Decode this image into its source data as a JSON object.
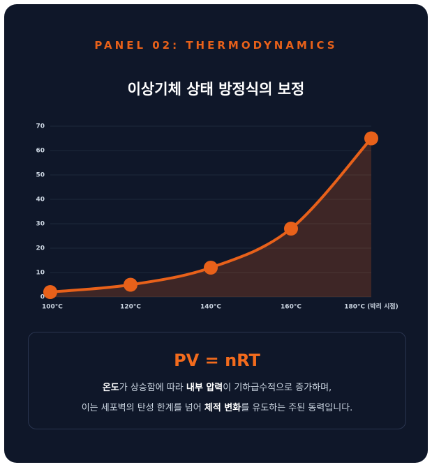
{
  "panel_label": "PANEL 02: THERMODYNAMICS",
  "chart_data": {
    "type": "line",
    "title": "이상기체 상태 방정식의 보정",
    "categories": [
      "100°C",
      "120°C",
      "140°C",
      "160°C",
      "180°C (박리 시점)"
    ],
    "values": [
      2,
      5,
      12,
      28,
      65
    ],
    "color": "#e8611a",
    "fill": true,
    "ylim": [
      0,
      70
    ],
    "yticks": [
      0,
      10,
      20,
      30,
      40,
      50,
      60,
      70
    ],
    "grid": true
  },
  "info": {
    "formula": "PV = nRT",
    "lines": [
      [
        "온도",
        "가 상승함에 따라 ",
        "내부 압력",
        "이 기하급수적으로 증가하며,"
      ],
      [
        "이는 세포벽의 탄성 한계를 넘어 ",
        "체적 변화",
        "를 유도하는 주된 동력입니다."
      ]
    ]
  }
}
